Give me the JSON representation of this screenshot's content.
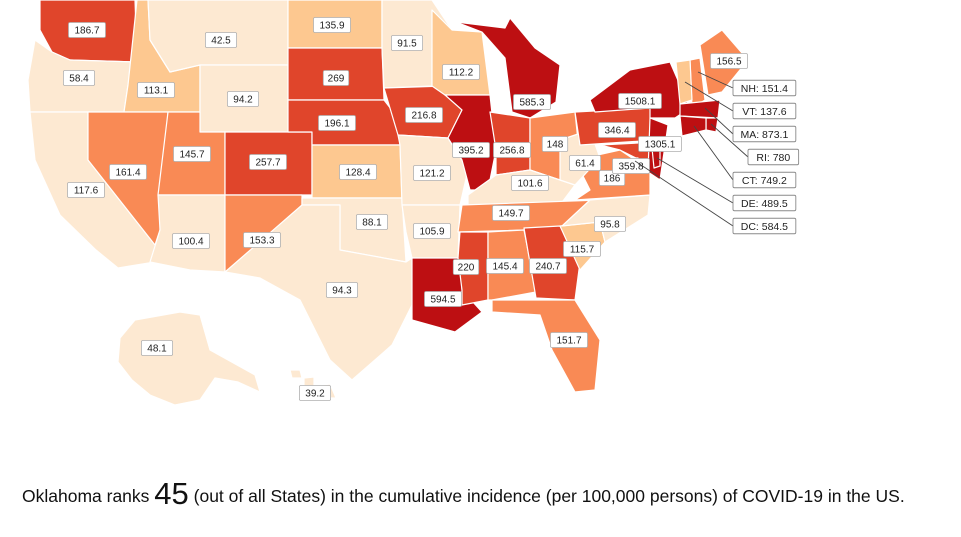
{
  "caption": {
    "prefix": "Oklahoma ranks ",
    "rank": "45",
    "suffix": " (out of all States) in the cumulative incidence (per 100,000 persons) of COVID-19 in the US."
  },
  "colors": {
    "very_low": "#fde9d2",
    "low": "#fdc890",
    "mid": "#f98a55",
    "high": "#e0452b",
    "very_high": "#bd0f12"
  },
  "states": [
    {
      "id": "WA",
      "value": "186.7",
      "level": "high"
    },
    {
      "id": "OR",
      "value": "58.4",
      "level": "very_low"
    },
    {
      "id": "CA",
      "value": "117.6",
      "level": "very_low"
    },
    {
      "id": "ID",
      "value": "113.1",
      "level": "low"
    },
    {
      "id": "NV",
      "value": "161.4",
      "level": "mid"
    },
    {
      "id": "MT",
      "value": "42.5",
      "level": "very_low"
    },
    {
      "id": "WY",
      "value": "94.2",
      "level": "very_low"
    },
    {
      "id": "UT",
      "value": "145.7",
      "level": "mid"
    },
    {
      "id": "AZ",
      "value": "100.4",
      "level": "very_low"
    },
    {
      "id": "CO",
      "value": "257.7",
      "level": "high"
    },
    {
      "id": "NM",
      "value": "153.3",
      "level": "mid"
    },
    {
      "id": "ND",
      "value": "135.9",
      "level": "low"
    },
    {
      "id": "SD",
      "value": "269",
      "level": "high"
    },
    {
      "id": "NE",
      "value": "196.1",
      "level": "high"
    },
    {
      "id": "KS",
      "value": "128.4",
      "level": "low"
    },
    {
      "id": "OK",
      "value": "88.1",
      "level": "very_low"
    },
    {
      "id": "TX",
      "value": "94.3",
      "level": "very_low"
    },
    {
      "id": "MN",
      "value": "91.5",
      "level": "very_low"
    },
    {
      "id": "IA",
      "value": "216.8",
      "level": "high"
    },
    {
      "id": "MO",
      "value": "121.2",
      "level": "very_low"
    },
    {
      "id": "AR",
      "value": "105.9",
      "level": "very_low"
    },
    {
      "id": "LA",
      "value": "594.5",
      "level": "very_high"
    },
    {
      "id": "WI",
      "value": "112.2",
      "level": "low"
    },
    {
      "id": "IL",
      "value": "395.2",
      "level": "very_high"
    },
    {
      "id": "MI",
      "value": "585.3",
      "level": "very_high"
    },
    {
      "id": "IN",
      "value": "256.8",
      "level": "high"
    },
    {
      "id": "OH",
      "value": "148",
      "level": "mid"
    },
    {
      "id": "KY",
      "value": "101.6",
      "level": "very_low"
    },
    {
      "id": "TN",
      "value": "149.7",
      "level": "mid"
    },
    {
      "id": "MS",
      "value": "220",
      "level": "high"
    },
    {
      "id": "AL",
      "value": "145.4",
      "level": "mid"
    },
    {
      "id": "GA",
      "value": "240.7",
      "level": "high"
    },
    {
      "id": "FL",
      "value": "151.7",
      "level": "mid"
    },
    {
      "id": "SC",
      "value": "115.7",
      "level": "low"
    },
    {
      "id": "NC",
      "value": "95.8",
      "level": "very_low"
    },
    {
      "id": "VA",
      "value": "186",
      "level": "mid"
    },
    {
      "id": "WV",
      "value": "61.4",
      "level": "very_low"
    },
    {
      "id": "PA",
      "value": "346.4",
      "level": "high"
    },
    {
      "id": "MD",
      "value": "359.8",
      "level": "high"
    },
    {
      "id": "NJ",
      "value": "1305.1",
      "level": "very_high"
    },
    {
      "id": "NY",
      "value": "1508.1",
      "level": "very_high"
    },
    {
      "id": "ME",
      "value": "156.5",
      "level": "mid"
    },
    {
      "id": "AK",
      "value": "48.1",
      "level": "very_low"
    },
    {
      "id": "HI",
      "value": "39.2",
      "level": "very_low"
    }
  ],
  "callouts": [
    {
      "id": "NH",
      "text": "NH: 151.4",
      "level": "mid"
    },
    {
      "id": "VT",
      "text": "VT: 137.6",
      "level": "low"
    },
    {
      "id": "MA",
      "text": "MA: 873.1",
      "level": "very_high"
    },
    {
      "id": "RI",
      "text": "RI: 780",
      "level": "very_high"
    },
    {
      "id": "CT",
      "text": "CT: 749.2",
      "level": "very_high"
    },
    {
      "id": "DE",
      "text": "DE: 489.5",
      "level": "very_high"
    },
    {
      "id": "DC",
      "text": "DC: 584.5",
      "level": "very_high"
    }
  ]
}
